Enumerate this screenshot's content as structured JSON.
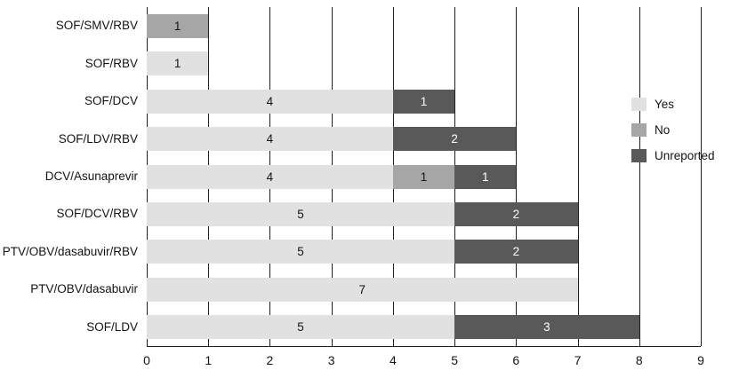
{
  "chart_data": {
    "type": "bar",
    "orientation": "horizontal",
    "stacked": true,
    "title": "",
    "xlabel": "",
    "ylabel": "",
    "categories": [
      "SOF/SMV/RBV",
      "SOF/RBV",
      "SOF/DCV",
      "SOF/LDV/RBV",
      "DCV/Asunaprevir",
      "SOF/DCV/RBV",
      "PTV/OBV/dasabuvir/RBV",
      "PTV/OBV/dasabuvir",
      "SOF/LDV"
    ],
    "series": [
      {
        "name": "Yes",
        "color": "#e1e1e1",
        "label_color": "#141414",
        "values": [
          0,
          1,
          4,
          4,
          4,
          5,
          5,
          7,
          5
        ]
      },
      {
        "name": "No",
        "color": "#a6a6a6",
        "label_color": "#141414",
        "values": [
          1,
          0,
          0,
          0,
          1,
          0,
          0,
          0,
          0
        ]
      },
      {
        "name": "Unreported",
        "color": "#595959",
        "label_color": "#ffffff",
        "values": [
          0,
          0,
          1,
          2,
          1,
          2,
          2,
          0,
          3
        ]
      }
    ],
    "xlim": [
      0,
      9
    ],
    "xticks": [
      0,
      1,
      2,
      3,
      4,
      5,
      6,
      7,
      8,
      9
    ],
    "grid": "vertical",
    "legend_position": "right",
    "legend_entries": [
      "Yes",
      "No",
      "Unreported"
    ]
  }
}
